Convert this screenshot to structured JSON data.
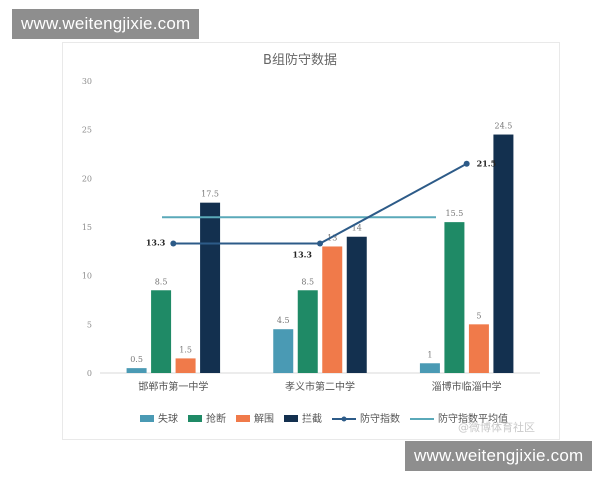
{
  "watermark_top": "www.weitengjixie.com",
  "watermark_bottom": "www.weitengjixie.com",
  "weibo_watermark": "@微博体育社区",
  "colors": {
    "失球": "#4a9ab4",
    "抢断": "#1f8a66",
    "解围": "#f07a4a",
    "拦截": "#13304f",
    "防守指数": "#2d5b88",
    "防守指数平均值": "#5aa9b9"
  },
  "chart_data": {
    "type": "bar",
    "title": "B组防守数据",
    "categories": [
      "邯郸市第一中学",
      "孝义市第二中学",
      "淄博市临淄中学"
    ],
    "ylim": [
      0,
      30
    ],
    "yticks": [
      0,
      5,
      10,
      15,
      20,
      25,
      30
    ],
    "grid": false,
    "legend_position": "bottom",
    "series": [
      {
        "name": "失球",
        "type": "bar",
        "values": [
          0.5,
          4.5,
          1
        ],
        "labels": [
          "0.5",
          "4.5",
          "1"
        ]
      },
      {
        "name": "抢断",
        "type": "bar",
        "values": [
          8.5,
          8.5,
          15.5
        ],
        "labels": [
          "8.5",
          "8.5",
          "15.5"
        ]
      },
      {
        "name": "解围",
        "type": "bar",
        "values": [
          1.5,
          13,
          5
        ],
        "labels": [
          "1.5",
          "13",
          "5"
        ]
      },
      {
        "name": "拦截",
        "type": "bar",
        "values": [
          17.5,
          14,
          24.5
        ],
        "labels": [
          "17.5",
          "14",
          "24.5"
        ]
      },
      {
        "name": "防守指数",
        "type": "line",
        "values": [
          13.3,
          13.3,
          21.5
        ],
        "labels": [
          "13.3",
          "13.3",
          "21.5"
        ]
      },
      {
        "name": "防守指数平均值",
        "type": "hline",
        "value": 16
      }
    ]
  }
}
